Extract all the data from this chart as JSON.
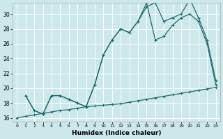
{
  "background_color": "#cde8ea",
  "grid_color": "#b0d4d8",
  "line_color": "#1a6b6b",
  "xlabel": "Humidex (Indice chaleur)",
  "xlim": [
    -0.5,
    23.5
  ],
  "ylim": [
    15.5,
    31.5
  ],
  "yticks": [
    16,
    18,
    20,
    22,
    24,
    26,
    28,
    30
  ],
  "xticks": [
    0,
    1,
    2,
    3,
    4,
    5,
    6,
    7,
    8,
    9,
    10,
    11,
    12,
    13,
    14,
    15,
    16,
    17,
    18,
    19,
    20,
    21,
    22,
    23
  ],
  "line1_x": [
    0,
    1,
    2,
    3,
    4,
    5,
    6,
    7,
    8,
    9,
    10,
    11,
    12,
    13,
    14,
    15,
    16,
    17,
    18,
    19,
    20,
    21,
    22,
    23
  ],
  "line1_y": [
    16.0,
    16.2,
    16.4,
    16.6,
    16.8,
    17.0,
    17.1,
    17.3,
    17.5,
    17.6,
    17.7,
    17.8,
    17.9,
    18.1,
    18.3,
    18.5,
    18.7,
    18.9,
    19.1,
    19.3,
    19.5,
    19.7,
    19.9,
    20.1
  ],
  "line2_x": [
    1,
    2,
    3,
    4,
    5,
    6,
    7,
    8,
    9,
    10,
    11,
    12,
    13,
    14,
    15,
    16,
    17,
    18,
    19,
    20,
    21,
    22,
    23
  ],
  "line2_y": [
    19.0,
    17.0,
    16.5,
    19.0,
    19.0,
    18.5,
    18.0,
    17.5,
    20.5,
    24.5,
    26.5,
    28.0,
    27.5,
    29.0,
    31.5,
    26.5,
    27.0,
    28.5,
    29.5,
    30.0,
    29.0,
    26.0,
    20.5
  ],
  "line3_x": [
    1,
    2,
    3,
    4,
    5,
    6,
    7,
    8,
    9,
    10,
    11,
    12,
    13,
    14,
    15,
    16,
    17,
    18,
    19,
    20,
    21,
    22,
    23
  ],
  "line3_y": [
    19.0,
    17.0,
    16.5,
    19.0,
    19.0,
    18.5,
    18.0,
    17.5,
    20.5,
    24.5,
    26.5,
    28.0,
    27.5,
    29.0,
    31.0,
    31.5,
    29.0,
    29.5,
    30.0,
    32.0,
    29.5,
    26.5,
    21.0
  ]
}
